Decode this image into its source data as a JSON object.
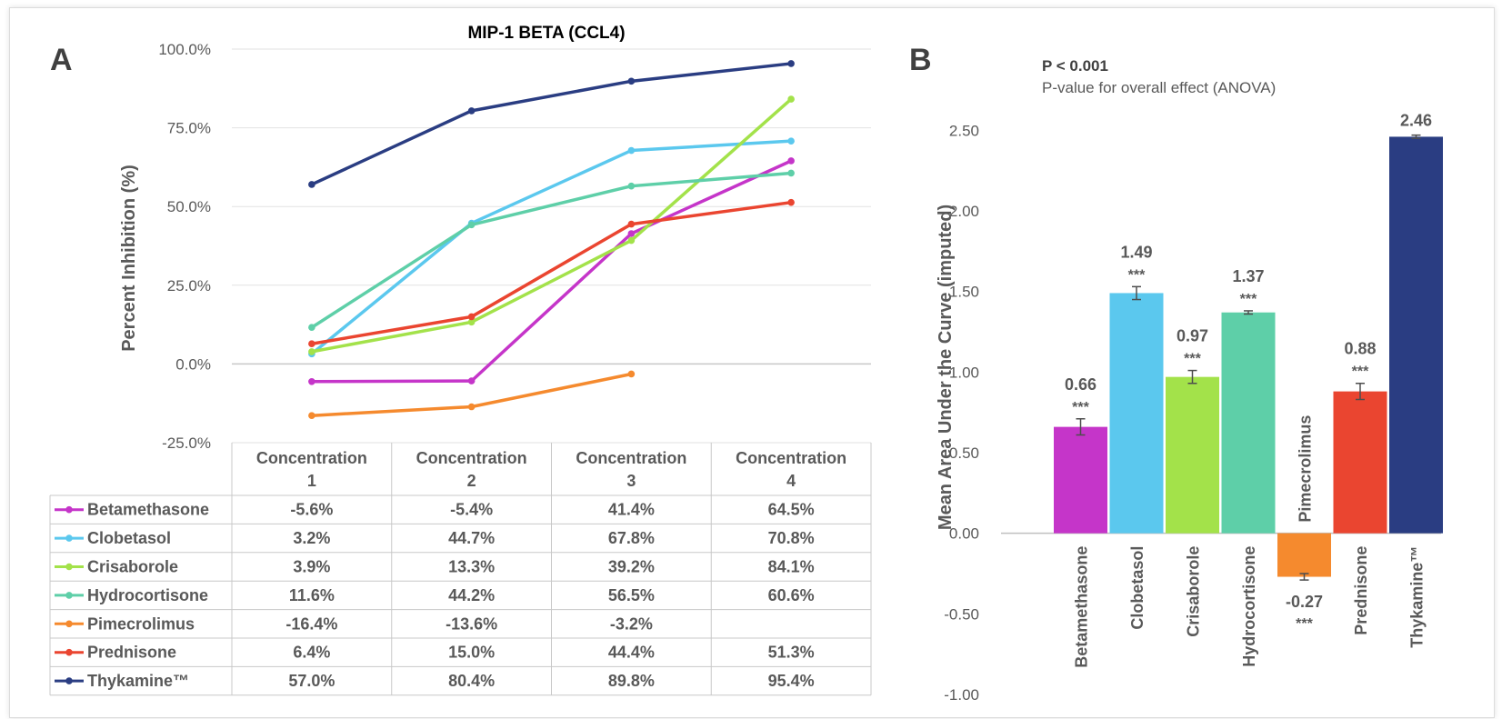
{
  "chart_data": [
    {
      "type": "line",
      "panel_letter": "A",
      "title": "MIP-1 BETA (CCL4)",
      "ylabel": "Percent Inhibition (%)",
      "xlabel": "",
      "ylim": [
        -25,
        100
      ],
      "y_ticks": [
        "-25.0%",
        "0.0%",
        "25.0%",
        "50.0%",
        "75.0%",
        "100.0%"
      ],
      "y_tick_values": [
        -25,
        0,
        25,
        50,
        75,
        100
      ],
      "categories": [
        "Concentration\n1",
        "Concentration\n2",
        "Concentration\n3",
        "Concentration\n4"
      ],
      "grid": true,
      "legend": "data-table-below",
      "series": [
        {
          "name": "Betamethasone",
          "color": "#c535c9",
          "values": [
            -5.6,
            -5.4,
            41.4,
            64.5
          ],
          "labels": [
            "-5.6%",
            "-5.4%",
            "41.4%",
            "64.5%"
          ]
        },
        {
          "name": "Clobetasol",
          "color": "#5bc8ee",
          "values": [
            3.2,
            44.7,
            67.8,
            70.8
          ],
          "labels": [
            "3.2%",
            "44.7%",
            "67.8%",
            "70.8%"
          ]
        },
        {
          "name": "Crisaborole",
          "color": "#a3e24a",
          "values": [
            3.9,
            13.3,
            39.2,
            84.1
          ],
          "labels": [
            "3.9%",
            "13.3%",
            "39.2%",
            "84.1%"
          ]
        },
        {
          "name": "Hydrocortisone",
          "color": "#5ecfa8",
          "values": [
            11.6,
            44.2,
            56.5,
            60.6
          ],
          "labels": [
            "11.6%",
            "44.2%",
            "56.5%",
            "60.6%"
          ]
        },
        {
          "name": "Pimecrolimus",
          "color": "#f58a2e",
          "values": [
            -16.4,
            -13.6,
            -3.2,
            null
          ],
          "labels": [
            "-16.4%",
            "-13.6%",
            "-3.2%",
            ""
          ]
        },
        {
          "name": "Prednisone",
          "color": "#ea4530",
          "values": [
            6.4,
            15.0,
            44.4,
            51.3
          ],
          "labels": [
            "6.4%",
            "15.0%",
            "44.4%",
            "51.3%"
          ]
        },
        {
          "name": "Thykamine™",
          "color": "#2a3d82",
          "values": [
            57.0,
            80.4,
            89.8,
            95.4
          ],
          "labels": [
            "57.0%",
            "80.4%",
            "89.8%",
            "95.4%"
          ]
        }
      ]
    },
    {
      "type": "bar",
      "panel_letter": "B",
      "title": "",
      "ylabel": "Mean Area Under the Curve (imputed)",
      "xlabel": "",
      "ylim": [
        -1.0,
        2.75
      ],
      "y_ticks": [
        "-1.00",
        "-0.50",
        "0.00",
        "0.50",
        "1.00",
        "1.50",
        "2.00",
        "2.50"
      ],
      "y_tick_values": [
        -1.0,
        -0.5,
        0.0,
        0.5,
        1.0,
        1.5,
        2.0,
        2.5
      ],
      "grid": false,
      "annotation_title": "P < 0.001",
      "annotation_subtitle": "P-value for overall effect (ANOVA)",
      "categories": [
        "Betamethasone",
        "Clobetasol",
        "Crisaborole",
        "Hydrocortisone",
        "Pimecrolimus",
        "Prednisone",
        "Thykamine™"
      ],
      "values": [
        0.66,
        1.49,
        0.97,
        1.37,
        -0.27,
        0.88,
        2.46
      ],
      "value_labels": [
        "0.66",
        "1.49",
        "0.97",
        "1.37",
        "-0.27",
        "0.88",
        "2.46"
      ],
      "errors": [
        0.05,
        0.04,
        0.04,
        0.01,
        0.02,
        0.05,
        0.01
      ],
      "significance": [
        "***",
        "***",
        "***",
        "***",
        "***",
        "***",
        ""
      ],
      "colors": [
        "#c535c9",
        "#5bc8ee",
        "#a3e24a",
        "#5ecfa8",
        "#f58a2e",
        "#ea4530",
        "#2a3d82"
      ]
    }
  ]
}
